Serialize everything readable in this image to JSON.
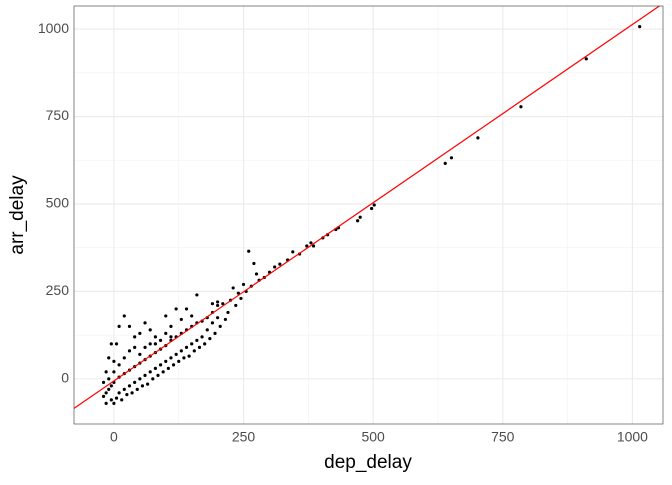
{
  "chart_data": {
    "type": "scatter",
    "x_label": "dep_delay",
    "y_label": "arr_delay",
    "xlim": [
      -77,
      1059
    ],
    "ylim": [
      -129,
      1066
    ],
    "xticks": [
      0,
      250,
      500,
      750,
      1000
    ],
    "yticks": [
      0,
      250,
      500,
      750,
      1000
    ],
    "xminor": [
      125,
      375,
      625,
      875
    ],
    "yminor": [
      125,
      375,
      625,
      875
    ],
    "grid": true,
    "color": "#000000",
    "line": {
      "intercept": -5.9,
      "slope": 1.019,
      "color": "#ff0000"
    },
    "x": [
      1014,
      911,
      785,
      702,
      651,
      639,
      502,
      497,
      475,
      470,
      433,
      428,
      412,
      403,
      385,
      380,
      372,
      358,
      345,
      335,
      320,
      310,
      300,
      290,
      280,
      260,
      270,
      275,
      250,
      240,
      230,
      225,
      210,
      200,
      190,
      180,
      170,
      160,
      150,
      140,
      130,
      120,
      110,
      100,
      90,
      80,
      70,
      60,
      50,
      40,
      30,
      20,
      10,
      0,
      -5,
      -10,
      -15,
      -5,
      0,
      5,
      10,
      20,
      30,
      40,
      50,
      60,
      70,
      80,
      90,
      100,
      110,
      120,
      130,
      140,
      150,
      160,
      170,
      180,
      190,
      200,
      220,
      200,
      190,
      20,
      10,
      -5,
      -10,
      -15,
      0,
      5,
      30,
      40,
      50,
      60,
      70,
      80,
      100,
      110,
      120,
      140,
      150,
      160,
      130,
      -20,
      -10,
      0,
      10,
      20,
      30,
      40,
      50,
      60,
      70,
      80,
      90,
      100,
      110,
      -20,
      -15,
      15,
      25,
      35,
      45,
      55,
      65,
      75,
      85,
      95,
      105,
      115,
      125,
      135,
      145,
      155,
      165,
      175,
      185,
      195,
      205,
      215,
      235,
      245,
      255,
      265
    ],
    "y": [
      1007,
      915,
      778,
      689,
      632,
      616,
      497,
      487,
      462,
      452,
      432,
      427,
      412,
      403,
      380,
      389,
      380,
      357,
      363,
      340,
      328,
      320,
      305,
      290,
      282,
      365,
      330,
      300,
      270,
      245,
      260,
      225,
      215,
      210,
      190,
      175,
      165,
      160,
      150,
      140,
      130,
      120,
      110,
      95,
      85,
      75,
      65,
      55,
      45,
      35,
      25,
      15,
      5,
      -10,
      -20,
      -30,
      -40,
      -60,
      -70,
      -55,
      -40,
      -30,
      -20,
      -10,
      0,
      10,
      20,
      30,
      40,
      50,
      60,
      70,
      80,
      90,
      100,
      110,
      120,
      140,
      160,
      175,
      190,
      220,
      215,
      180,
      150,
      100,
      60,
      20,
      50,
      100,
      150,
      120,
      130,
      160,
      140,
      120,
      180,
      150,
      200,
      200,
      180,
      240,
      170,
      -10,
      0,
      20,
      40,
      60,
      80,
      90,
      70,
      90,
      100,
      100,
      110,
      130,
      120,
      -50,
      -70,
      -60,
      -45,
      -40,
      -30,
      -20,
      -15,
      0,
      10,
      20,
      30,
      40,
      50,
      60,
      65,
      80,
      90,
      100,
      115,
      130,
      150,
      170,
      210,
      230,
      250,
      265
    ]
  }
}
